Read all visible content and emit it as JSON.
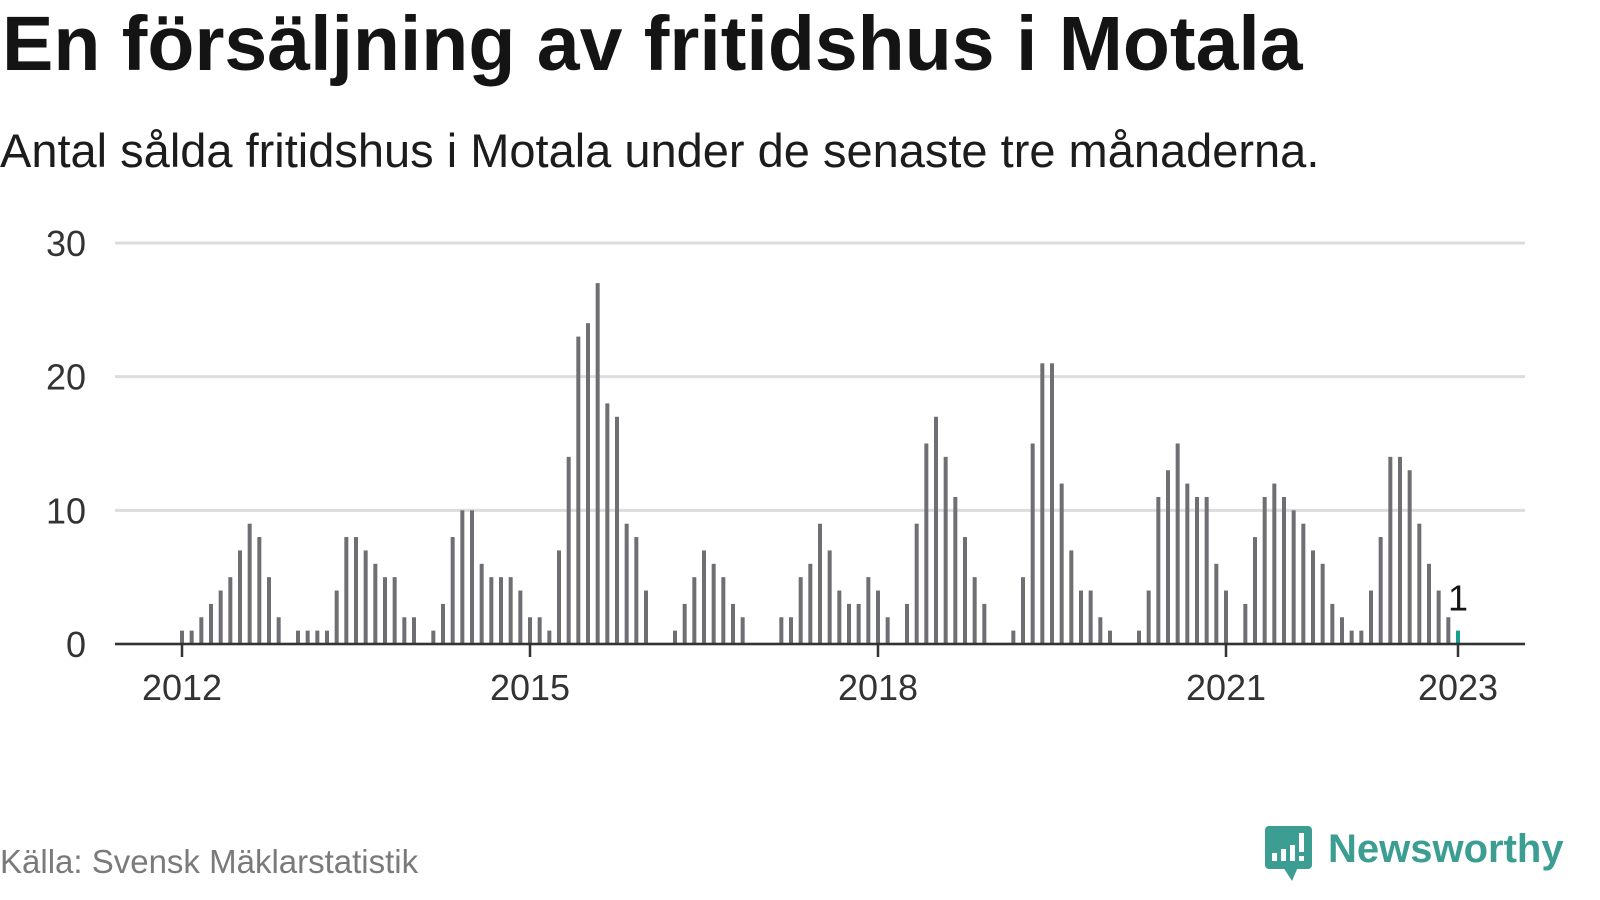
{
  "chart_data": {
    "type": "bar",
    "title": "En försäljning av fritidshus i Motala",
    "subtitle": "Antal sålda fritidshus i Motala under de senaste tre månaderna.",
    "x": [
      "2012-01",
      "2012-02",
      "2012-03",
      "2012-04",
      "2012-05",
      "2012-06",
      "2012-07",
      "2012-08",
      "2012-09",
      "2012-10",
      "2012-11",
      "2012-12",
      "2013-01",
      "2013-02",
      "2013-03",
      "2013-04",
      "2013-05",
      "2013-06",
      "2013-07",
      "2013-08",
      "2013-09",
      "2013-10",
      "2013-11",
      "2013-12",
      "2014-01",
      "2014-02",
      "2014-03",
      "2014-04",
      "2014-05",
      "2014-06",
      "2014-07",
      "2014-08",
      "2014-09",
      "2014-10",
      "2014-11",
      "2014-12",
      "2015-01",
      "2015-02",
      "2015-03",
      "2015-04",
      "2015-05",
      "2015-06",
      "2015-07",
      "2015-08",
      "2015-09",
      "2015-10",
      "2015-11",
      "2015-12",
      "2016-01",
      "2016-02",
      "2016-03",
      "2016-04",
      "2016-05",
      "2016-06",
      "2016-07",
      "2016-08",
      "2016-09",
      "2016-10",
      "2016-11",
      "2016-12",
      "2017-01",
      "2017-02",
      "2017-03",
      "2017-04",
      "2017-05",
      "2017-06",
      "2017-07",
      "2017-08",
      "2017-09",
      "2017-10",
      "2017-11",
      "2017-12",
      "2018-01",
      "2018-02",
      "2018-03",
      "2018-04",
      "2018-05",
      "2018-06",
      "2018-07",
      "2018-08",
      "2018-09",
      "2018-10",
      "2018-11",
      "2018-12",
      "2019-01",
      "2019-02",
      "2019-03",
      "2019-04",
      "2019-05",
      "2019-06",
      "2019-07",
      "2019-08",
      "2019-09",
      "2019-10",
      "2019-11",
      "2019-12",
      "2020-01",
      "2020-02",
      "2020-03",
      "2020-04",
      "2020-05",
      "2020-06",
      "2020-07",
      "2020-08",
      "2020-09",
      "2020-10",
      "2020-11",
      "2020-12",
      "2021-01",
      "2021-02",
      "2021-03",
      "2021-04",
      "2021-05",
      "2021-06",
      "2021-07",
      "2021-08",
      "2021-09",
      "2021-10",
      "2021-11",
      "2021-12",
      "2022-01",
      "2022-02",
      "2022-03",
      "2022-04",
      "2022-05",
      "2022-06",
      "2022-07",
      "2022-08",
      "2022-09",
      "2022-10",
      "2022-11",
      "2022-12",
      "2023-01"
    ],
    "values": [
      1,
      1,
      2,
      3,
      4,
      5,
      7,
      9,
      8,
      5,
      2,
      0,
      1,
      1,
      1,
      1,
      4,
      8,
      8,
      7,
      6,
      5,
      5,
      2,
      2,
      0,
      1,
      3,
      8,
      10,
      10,
      6,
      5,
      5,
      5,
      4,
      2,
      2,
      1,
      7,
      14,
      23,
      24,
      27,
      18,
      17,
      9,
      8,
      4,
      0,
      0,
      1,
      3,
      5,
      7,
      6,
      5,
      3,
      2,
      0,
      0,
      0,
      2,
      2,
      5,
      6,
      9,
      7,
      4,
      3,
      3,
      5,
      4,
      2,
      0,
      3,
      9,
      15,
      17,
      14,
      11,
      8,
      5,
      3,
      0,
      0,
      1,
      5,
      15,
      21,
      21,
      12,
      7,
      4,
      4,
      2,
      1,
      0,
      0,
      1,
      4,
      11,
      13,
      15,
      12,
      11,
      11,
      6,
      4,
      0,
      3,
      8,
      11,
      12,
      11,
      10,
      9,
      7,
      6,
      3,
      2,
      1,
      1,
      4,
      8,
      14,
      14,
      13,
      9,
      6,
      4,
      2,
      1
    ],
    "ylim": [
      0,
      30
    ],
    "yticks": [
      0,
      10,
      20,
      30
    ],
    "xticks": [
      "2012",
      "2015",
      "2018",
      "2021",
      "2023"
    ],
    "highlight": {
      "x": "2023-01",
      "label": "1"
    },
    "grid": true,
    "legend": "none",
    "colors": {
      "bars": "#6e6e73",
      "highlight": "#13a08f",
      "grid": "#dcdcdc",
      "axis": "#333333"
    }
  },
  "footer": {
    "source": "Källa: Svensk Mäklarstatistik"
  },
  "logo": {
    "text": "Newsworthy",
    "icon": "newsworthy-logo-icon",
    "color": "#3c9e92"
  }
}
